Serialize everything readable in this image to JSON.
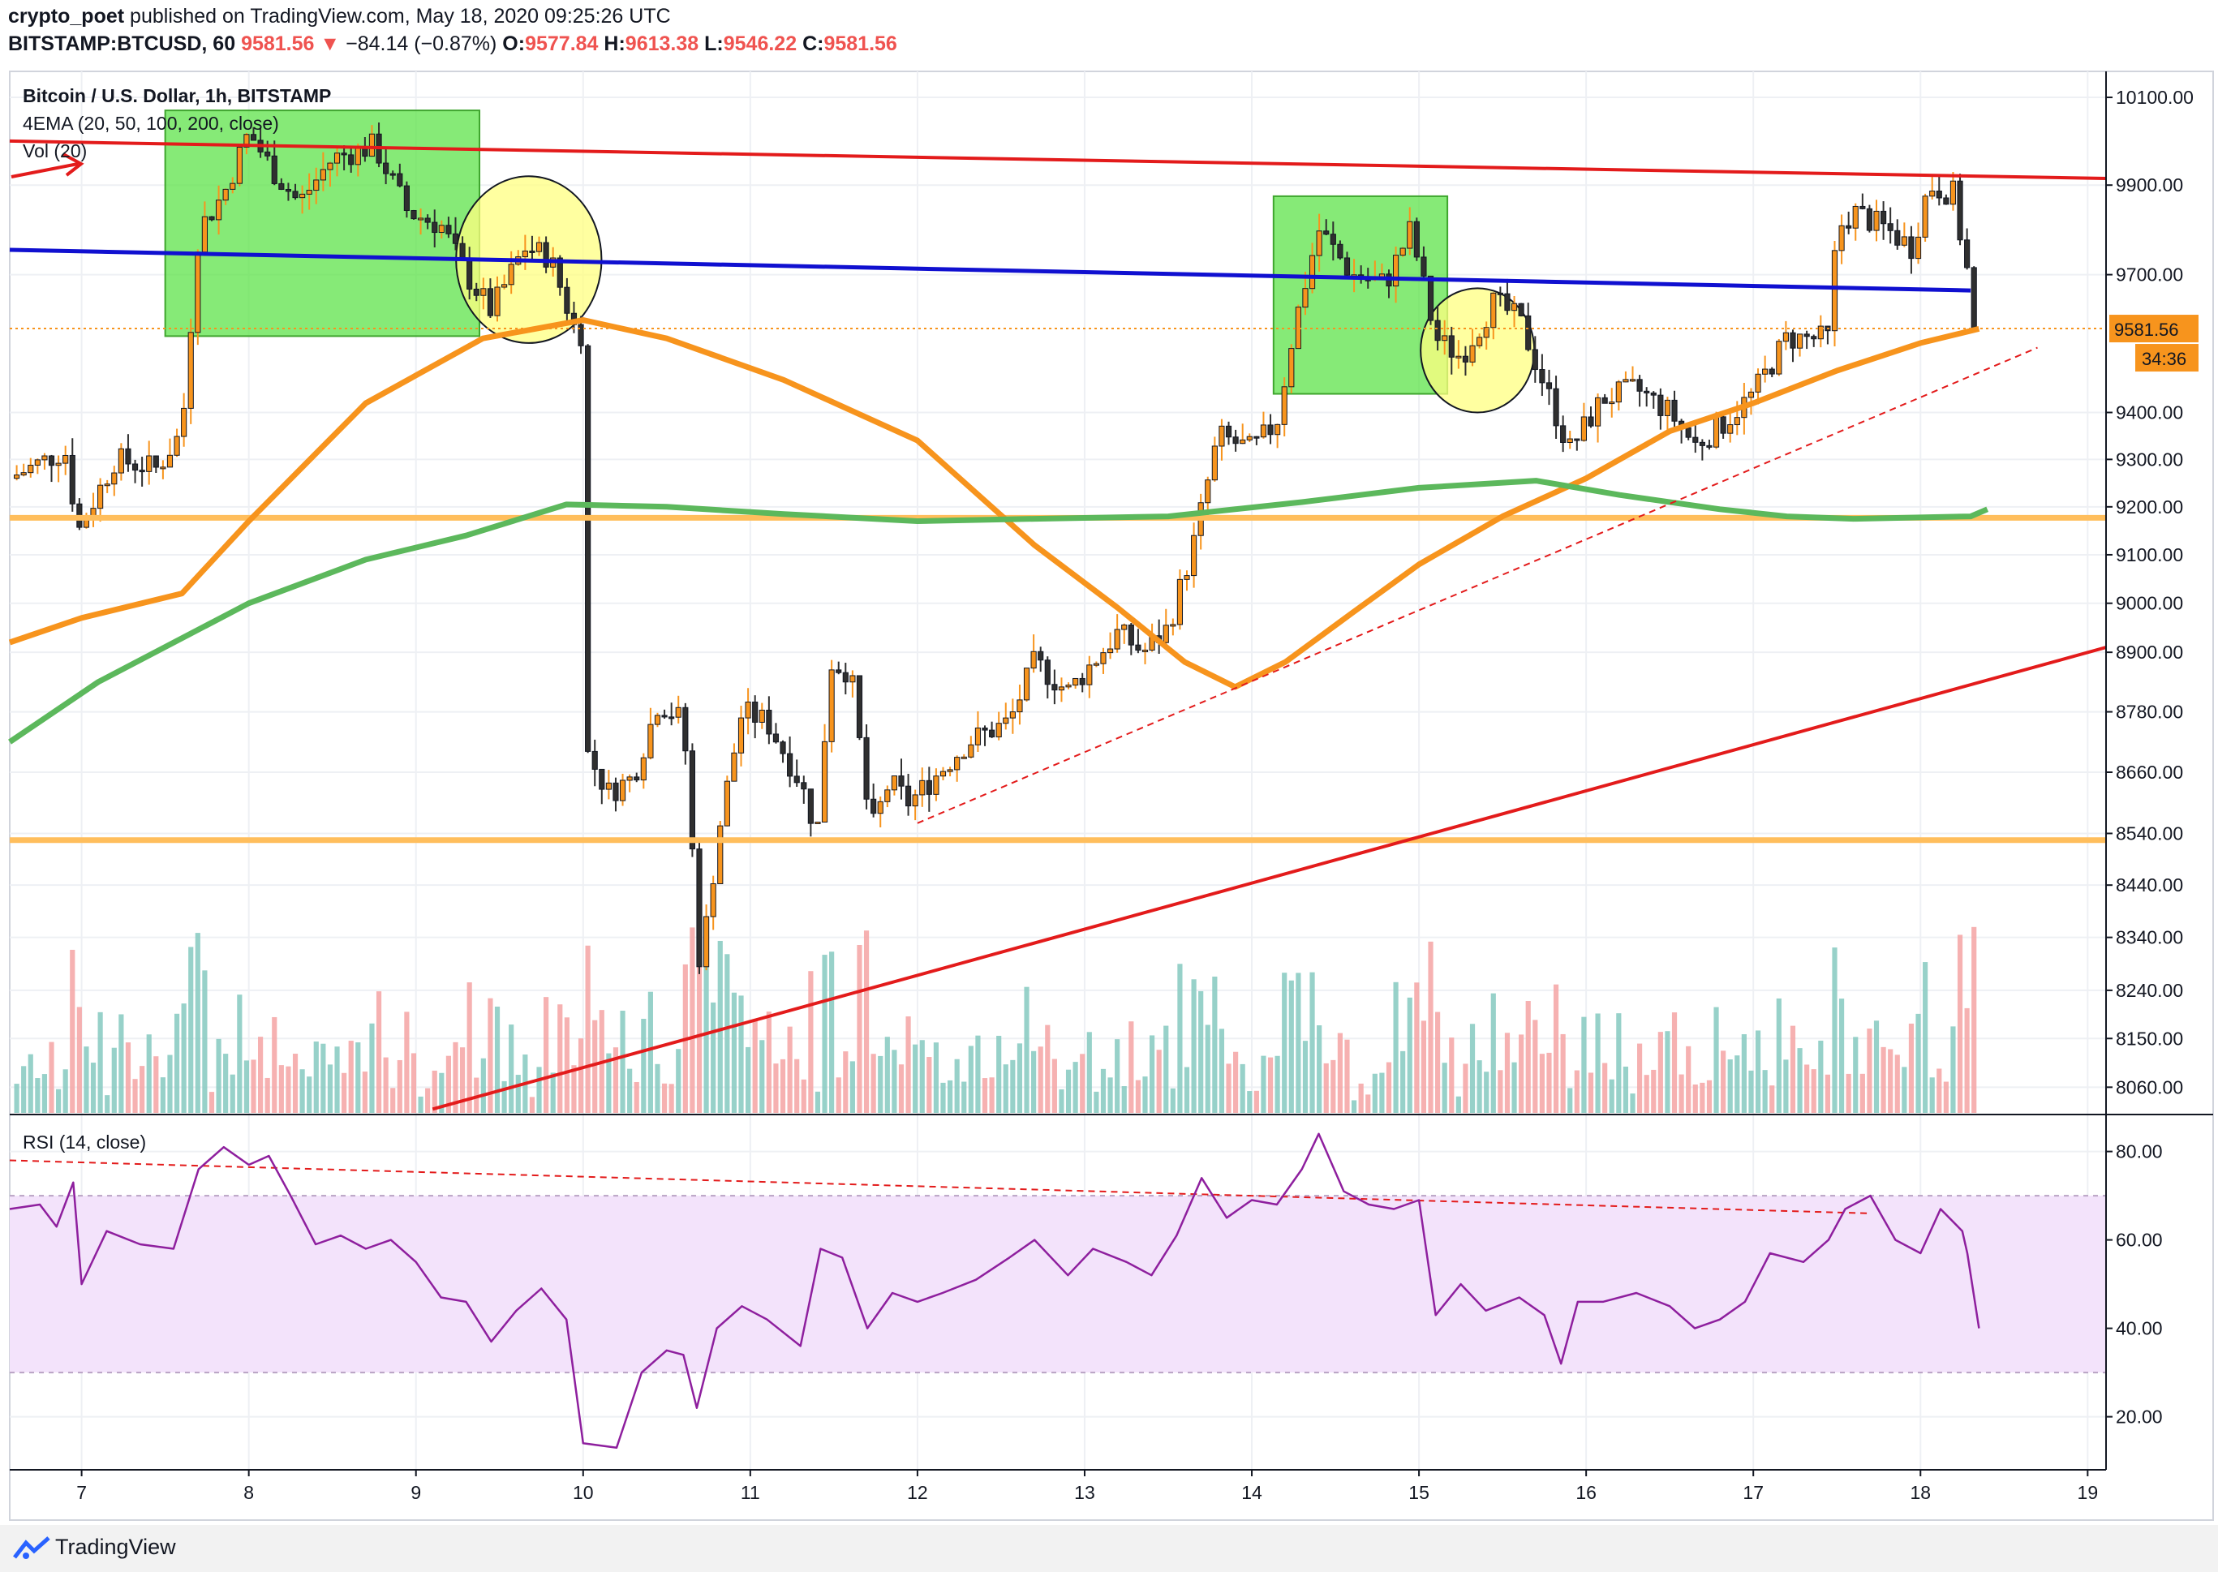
{
  "header": {
    "author": "crypto_poet",
    "published_text": "published on TradingView.com, May 18, 2020 09:25:26 UTC",
    "symbol": "BITSTAMP:BTCUSD, 60",
    "last": "9581.56",
    "change": "−84.14 (−0.87%)",
    "o_label": "O:",
    "o": "9577.84",
    "h_label": "H:",
    "h": "9613.38",
    "l_label": "L:",
    "l": "9546.22",
    "c_label": "C:",
    "c": "9581.56"
  },
  "legend": {
    "title": "Bitcoin / U.S. Dollar, 1h, BITSTAMP",
    "ema": "4EMA (20, 50, 100, 200, close)",
    "vol": "Vol (20)",
    "rsi": "RSI (14, close)"
  },
  "price_badge": {
    "value": "9581.56",
    "countdown": "34:36",
    "color": "#f7941d"
  },
  "footer": {
    "brand": "TradingView"
  },
  "colors": {
    "up_candle": "#f7941d",
    "down_candle": "#2f2f2f",
    "ema_50": "#f7941d",
    "ema_200": "#5cb85c",
    "trendline_red": "#e31b1b",
    "trendline_blue": "#1010d0",
    "support": "#ffbe5c",
    "zone_green": "#5ee34a",
    "zone_yellow": "#ffff80",
    "rsi_line": "#8e1f9e",
    "rsi_band": "#f3e3fb",
    "vol_up": "#85c9c0",
    "vol_down": "#f4a3a3"
  },
  "chart_data": {
    "type": "candlestick",
    "title": "Bitcoin / U.S. Dollar, 1h, BITSTAMP",
    "x_ticks": [
      "7",
      "8",
      "9",
      "10",
      "11",
      "12",
      "13",
      "14",
      "15",
      "16",
      "17",
      "18",
      "19"
    ],
    "x_range": [
      6.57,
      19.11
    ],
    "price_ticks": [
      10100,
      9900,
      9700,
      9400,
      9300,
      9200,
      9100,
      9000,
      8900,
      8780,
      8660,
      8540,
      8440,
      8340,
      8240,
      8150,
      8060
    ],
    "price_scale": {
      "kind": "log",
      "range": [
        8010,
        10160
      ]
    },
    "rsi_ticks": [
      80,
      60,
      40,
      20
    ],
    "rsi_range": [
      8,
      88
    ],
    "rsi_band": [
      30,
      70
    ],
    "close_path": [
      [
        6.57,
        9260
      ],
      [
        6.9,
        9320
      ],
      [
        6.98,
        9150
      ],
      [
        7.2,
        9300
      ],
      [
        7.45,
        9280
      ],
      [
        7.6,
        9360
      ],
      [
        7.7,
        9800
      ],
      [
        7.85,
        9880
      ],
      [
        8.0,
        10020
      ],
      [
        8.15,
        9930
      ],
      [
        8.3,
        9860
      ],
      [
        8.5,
        9960
      ],
      [
        8.75,
        9990
      ],
      [
        8.95,
        9840
      ],
      [
        9.15,
        9810
      ],
      [
        9.3,
        9700
      ],
      [
        9.45,
        9620
      ],
      [
        9.65,
        9760
      ],
      [
        9.8,
        9740
      ],
      [
        9.95,
        9580
      ],
      [
        10.0,
        9570
      ],
      [
        10.02,
        8700
      ],
      [
        10.15,
        8620
      ],
      [
        10.3,
        8650
      ],
      [
        10.45,
        8800
      ],
      [
        10.6,
        8760
      ],
      [
        10.7,
        8280
      ],
      [
        10.82,
        8560
      ],
      [
        10.95,
        8780
      ],
      [
        11.1,
        8760
      ],
      [
        11.3,
        8640
      ],
      [
        11.4,
        8540
      ],
      [
        11.48,
        8880
      ],
      [
        11.6,
        8860
      ],
      [
        11.72,
        8540
      ],
      [
        11.83,
        8640
      ],
      [
        11.95,
        8600
      ],
      [
        12.1,
        8650
      ],
      [
        12.3,
        8720
      ],
      [
        12.55,
        8760
      ],
      [
        12.7,
        8880
      ],
      [
        12.9,
        8820
      ],
      [
        13.05,
        8880
      ],
      [
        13.2,
        8940
      ],
      [
        13.35,
        8900
      ],
      [
        13.5,
        8950
      ],
      [
        13.65,
        9120
      ],
      [
        13.8,
        9350
      ],
      [
        14.0,
        9320
      ],
      [
        14.15,
        9380
      ],
      [
        14.25,
        9580
      ],
      [
        14.4,
        9800
      ],
      [
        14.6,
        9700
      ],
      [
        14.8,
        9680
      ],
      [
        14.95,
        9800
      ],
      [
        15.1,
        9560
      ],
      [
        15.25,
        9520
      ],
      [
        15.45,
        9640
      ],
      [
        15.6,
        9600
      ],
      [
        15.75,
        9460
      ],
      [
        15.9,
        9320
      ],
      [
        16.1,
        9430
      ],
      [
        16.3,
        9450
      ],
      [
        16.5,
        9400
      ],
      [
        16.65,
        9330
      ],
      [
        16.8,
        9370
      ],
      [
        17.0,
        9440
      ],
      [
        17.2,
        9560
      ],
      [
        17.45,
        9560
      ],
      [
        17.5,
        9800
      ],
      [
        17.6,
        9840
      ],
      [
        17.8,
        9800
      ],
      [
        17.95,
        9760
      ],
      [
        18.05,
        9900
      ],
      [
        18.2,
        9880
      ],
      [
        18.25,
        9760
      ],
      [
        18.35,
        9581.56
      ]
    ],
    "series": [
      {
        "name": "EMA 50",
        "points": [
          [
            6.57,
            8920
          ],
          [
            7.0,
            8970
          ],
          [
            7.6,
            9020
          ],
          [
            8.0,
            9170
          ],
          [
            8.7,
            9420
          ],
          [
            9.4,
            9560
          ],
          [
            10.0,
            9600
          ],
          [
            10.5,
            9560
          ],
          [
            11.2,
            9470
          ],
          [
            12.0,
            9340
          ],
          [
            12.7,
            9120
          ],
          [
            13.2,
            8990
          ],
          [
            13.6,
            8880
          ],
          [
            13.9,
            8830
          ],
          [
            14.2,
            8880
          ],
          [
            14.6,
            8980
          ],
          [
            15.0,
            9080
          ],
          [
            15.5,
            9180
          ],
          [
            16.0,
            9260
          ],
          [
            16.5,
            9360
          ],
          [
            17.0,
            9420
          ],
          [
            17.5,
            9490
          ],
          [
            18.0,
            9550
          ],
          [
            18.35,
            9581
          ]
        ]
      },
      {
        "name": "EMA 200",
        "points": [
          [
            6.57,
            8720
          ],
          [
            7.1,
            8840
          ],
          [
            8.0,
            9000
          ],
          [
            8.7,
            9090
          ],
          [
            9.3,
            9140
          ],
          [
            9.9,
            9205
          ],
          [
            10.5,
            9200
          ],
          [
            11.2,
            9185
          ],
          [
            12.0,
            9170
          ],
          [
            12.7,
            9175
          ],
          [
            13.5,
            9180
          ],
          [
            14.3,
            9210
          ],
          [
            15.0,
            9240
          ],
          [
            15.7,
            9255
          ],
          [
            16.2,
            9225
          ],
          [
            16.8,
            9195
          ],
          [
            17.2,
            9180
          ],
          [
            17.6,
            9175
          ],
          [
            18.3,
            9180
          ],
          [
            18.4,
            9195
          ]
        ]
      }
    ],
    "trendlines": [
      {
        "name": "resistance",
        "points": [
          [
            6.57,
            10000
          ],
          [
            19.11,
            9915
          ]
        ]
      },
      {
        "name": "mid",
        "points": [
          [
            6.57,
            9755
          ],
          [
            18.3,
            9665
          ]
        ]
      },
      {
        "name": "support_rising",
        "points": [
          [
            9.1,
            8020
          ],
          [
            19.11,
            8910
          ]
        ]
      },
      {
        "name": "support_dashed",
        "points": [
          [
            12.0,
            8560
          ],
          [
            18.7,
            9540
          ]
        ]
      }
    ],
    "horizontal_levels": [
      9177,
      8527
    ],
    "last_price_line": 9581.56,
    "rsi": [
      [
        6.57,
        67
      ],
      [
        6.75,
        68
      ],
      [
        6.85,
        63
      ],
      [
        6.95,
        73
      ],
      [
        7.0,
        50
      ],
      [
        7.15,
        62
      ],
      [
        7.35,
        59
      ],
      [
        7.55,
        58
      ],
      [
        7.7,
        76
      ],
      [
        7.85,
        81
      ],
      [
        8.0,
        77
      ],
      [
        8.12,
        79
      ],
      [
        8.25,
        70
      ],
      [
        8.4,
        59
      ],
      [
        8.55,
        61
      ],
      [
        8.7,
        58
      ],
      [
        8.85,
        60
      ],
      [
        9.0,
        55
      ],
      [
        9.15,
        47
      ],
      [
        9.3,
        46
      ],
      [
        9.45,
        37
      ],
      [
        9.6,
        44
      ],
      [
        9.75,
        49
      ],
      [
        9.9,
        42
      ],
      [
        10.0,
        14
      ],
      [
        10.2,
        13
      ],
      [
        10.35,
        30
      ],
      [
        10.5,
        35
      ],
      [
        10.6,
        34
      ],
      [
        10.68,
        22
      ],
      [
        10.8,
        40
      ],
      [
        10.95,
        45
      ],
      [
        11.1,
        42
      ],
      [
        11.3,
        36
      ],
      [
        11.42,
        58
      ],
      [
        11.55,
        56
      ],
      [
        11.7,
        40
      ],
      [
        11.85,
        48
      ],
      [
        12.0,
        46
      ],
      [
        12.15,
        48
      ],
      [
        12.35,
        51
      ],
      [
        12.55,
        56
      ],
      [
        12.7,
        60
      ],
      [
        12.9,
        52
      ],
      [
        13.05,
        58
      ],
      [
        13.25,
        55
      ],
      [
        13.4,
        52
      ],
      [
        13.55,
        61
      ],
      [
        13.7,
        74
      ],
      [
        13.85,
        65
      ],
      [
        14.0,
        69
      ],
      [
        14.15,
        68
      ],
      [
        14.3,
        76
      ],
      [
        14.4,
        84
      ],
      [
        14.55,
        71
      ],
      [
        14.7,
        68
      ],
      [
        14.85,
        67
      ],
      [
        15.0,
        69
      ],
      [
        15.1,
        43
      ],
      [
        15.25,
        50
      ],
      [
        15.4,
        44
      ],
      [
        15.6,
        47
      ],
      [
        15.75,
        43
      ],
      [
        15.85,
        32
      ],
      [
        15.95,
        46
      ],
      [
        16.1,
        46
      ],
      [
        16.3,
        48
      ],
      [
        16.5,
        45
      ],
      [
        16.65,
        40
      ],
      [
        16.8,
        42
      ],
      [
        16.95,
        46
      ],
      [
        17.1,
        57
      ],
      [
        17.3,
        55
      ],
      [
        17.45,
        60
      ],
      [
        17.55,
        67
      ],
      [
        17.7,
        70
      ],
      [
        17.85,
        60
      ],
      [
        18.0,
        57
      ],
      [
        18.12,
        67
      ],
      [
        18.25,
        62
      ],
      [
        18.28,
        57
      ],
      [
        18.35,
        40
      ]
    ],
    "rsi_trendline": [
      [
        6.57,
        78
      ],
      [
        17.7,
        66
      ]
    ],
    "annotations": [
      {
        "type": "zone",
        "x": [
          7.5,
          9.38
        ],
        "y": [
          9565,
          10070
        ]
      },
      {
        "type": "zone",
        "x": [
          14.13,
          15.17
        ],
        "y": [
          9440,
          9875
        ]
      },
      {
        "type": "circle",
        "x": [
          9.24,
          10.11
        ],
        "y": [
          9550,
          9920
        ]
      },
      {
        "type": "circle",
        "x": [
          15.01,
          15.69
        ],
        "y": [
          9400,
          9670
        ]
      }
    ]
  }
}
